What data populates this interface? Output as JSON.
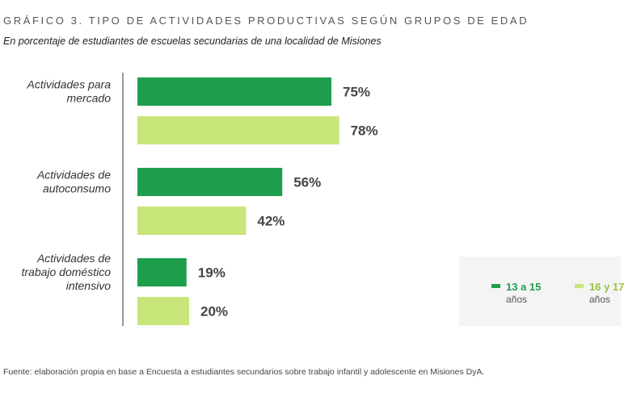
{
  "chart_data": {
    "type": "bar",
    "orientation": "horizontal",
    "title": "GRÁFICO 3. TIPO DE ACTIVIDADES PRODUCTIVAS SEGÚN GRUPOS DE EDAD",
    "subtitle": "En porcentaje de estudiantes de escuelas secundarias de una localidad de Misiones",
    "categories": [
      [
        "Actividades para",
        "mercado"
      ],
      [
        "Actividades de",
        "autoconsumo"
      ],
      [
        "Actividades de",
        "trabajo doméstico",
        "intensivo"
      ]
    ],
    "series": [
      {
        "name": "13 a 15 años",
        "name_lines": [
          "13 a 15",
          "años"
        ],
        "color": "#1e9e4c",
        "values": [
          75,
          56,
          19
        ]
      },
      {
        "name": "16 y 17 años",
        "name_lines": [
          "16 y 17",
          "años"
        ],
        "color": "#c8e67a",
        "values": [
          78,
          42,
          20
        ]
      }
    ],
    "value_suffix": "%",
    "xlim": [
      0,
      100
    ],
    "grid": false,
    "legend_position": "bottom-right"
  },
  "source": "Fuente: elaboración propia en base a Encuesta a estudiantes secundarios sobre trabajo infantil y adolescente en Misiones DyA."
}
